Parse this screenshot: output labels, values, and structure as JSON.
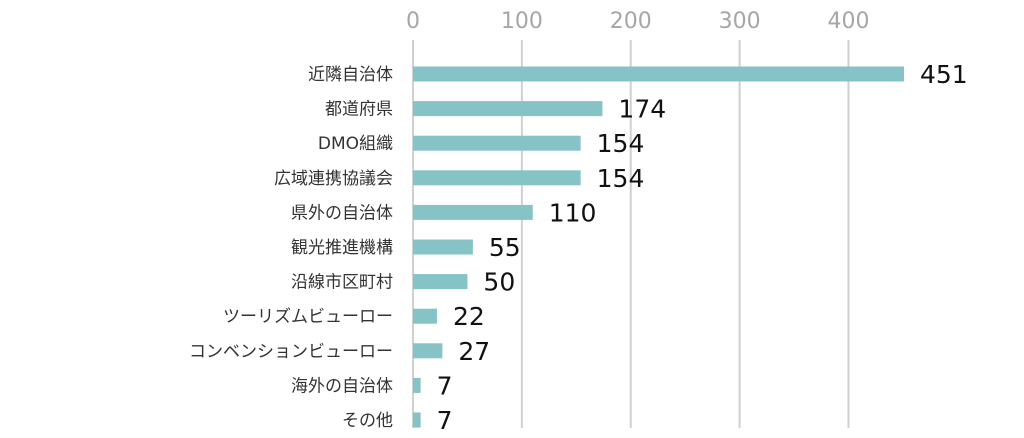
{
  "chart_data": {
    "type": "bar",
    "orientation": "horizontal",
    "title": "",
    "xlabel": "",
    "ylabel": "",
    "xlim": [
      0,
      451
    ],
    "x_ticks": [
      0,
      100,
      200,
      300,
      400
    ],
    "tick_position": "top",
    "grid": true,
    "legend": "none",
    "bar_color": "#86c3c6",
    "gridline_color": "#d0d0d0",
    "tick_label_color": "#a6a6a6",
    "categories": [
      "近隣自治体",
      "都道府県",
      "DMO組織",
      "広域連携協議会",
      "県外の自治体",
      "観光推進機構",
      "沿線市区町村",
      "ツーリズムビューロー",
      "コンベンションビューロー",
      "海外の自治体",
      "その他"
    ],
    "values": [
      451,
      174,
      154,
      154,
      110,
      55,
      50,
      22,
      27,
      7,
      7
    ],
    "data_labels": [
      "451",
      "174",
      "154",
      "154",
      "110",
      "55",
      "50",
      "22",
      "27",
      "7",
      "7"
    ]
  }
}
